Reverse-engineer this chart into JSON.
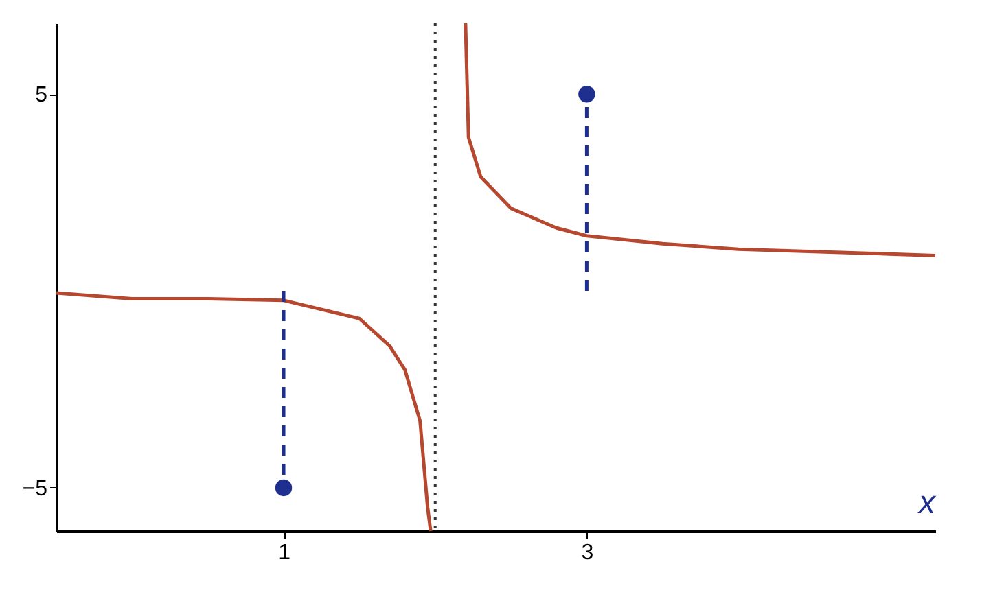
{
  "chart_data": {
    "type": "line",
    "xlabel": "x",
    "xlim": [
      -0.5,
      5.3
    ],
    "ylim": [
      -6.1,
      6.8
    ],
    "xticks": [
      1,
      3
    ],
    "yticks": [
      5,
      -5
    ],
    "grid": false,
    "series": [
      {
        "color": "#b5482f",
        "x": [
          -0.5,
          0,
          0.5,
          1,
          1.5,
          1.7,
          1.8,
          1.9,
          1.95,
          1.97
        ],
        "values": [
          -0.05,
          -0.2,
          -0.2,
          -0.24,
          -0.7,
          -1.4,
          -2,
          -3.3,
          -5.5,
          -6.1
        ]
      },
      {
        "color": "#b5482f",
        "x": [
          2.2,
          2.22,
          2.3,
          2.5,
          2.8,
          3,
          3.5,
          4,
          5,
          5.3
        ],
        "values": [
          6.8,
          3.9,
          2.9,
          2.1,
          1.6,
          1.4,
          1.2,
          1.06,
          0.94,
          0.9
        ]
      },
      {
        "color": "#1f2f8f",
        "line_style": "dashed",
        "x": [
          1,
          1
        ],
        "values": [
          0,
          -5
        ]
      },
      {
        "color": "#1f2f8f",
        "line_style": "dashed",
        "x": [
          3,
          3
        ],
        "values": [
          0,
          5
        ]
      },
      {
        "type": "scatter",
        "marker": "circle",
        "color": "#1f2f8f",
        "x": [
          1,
          3
        ],
        "values": [
          -5,
          5
        ]
      }
    ],
    "ref_lines": [
      {
        "axis": "x",
        "value": 2,
        "color": "#333333",
        "line_style": "dotted"
      }
    ]
  }
}
